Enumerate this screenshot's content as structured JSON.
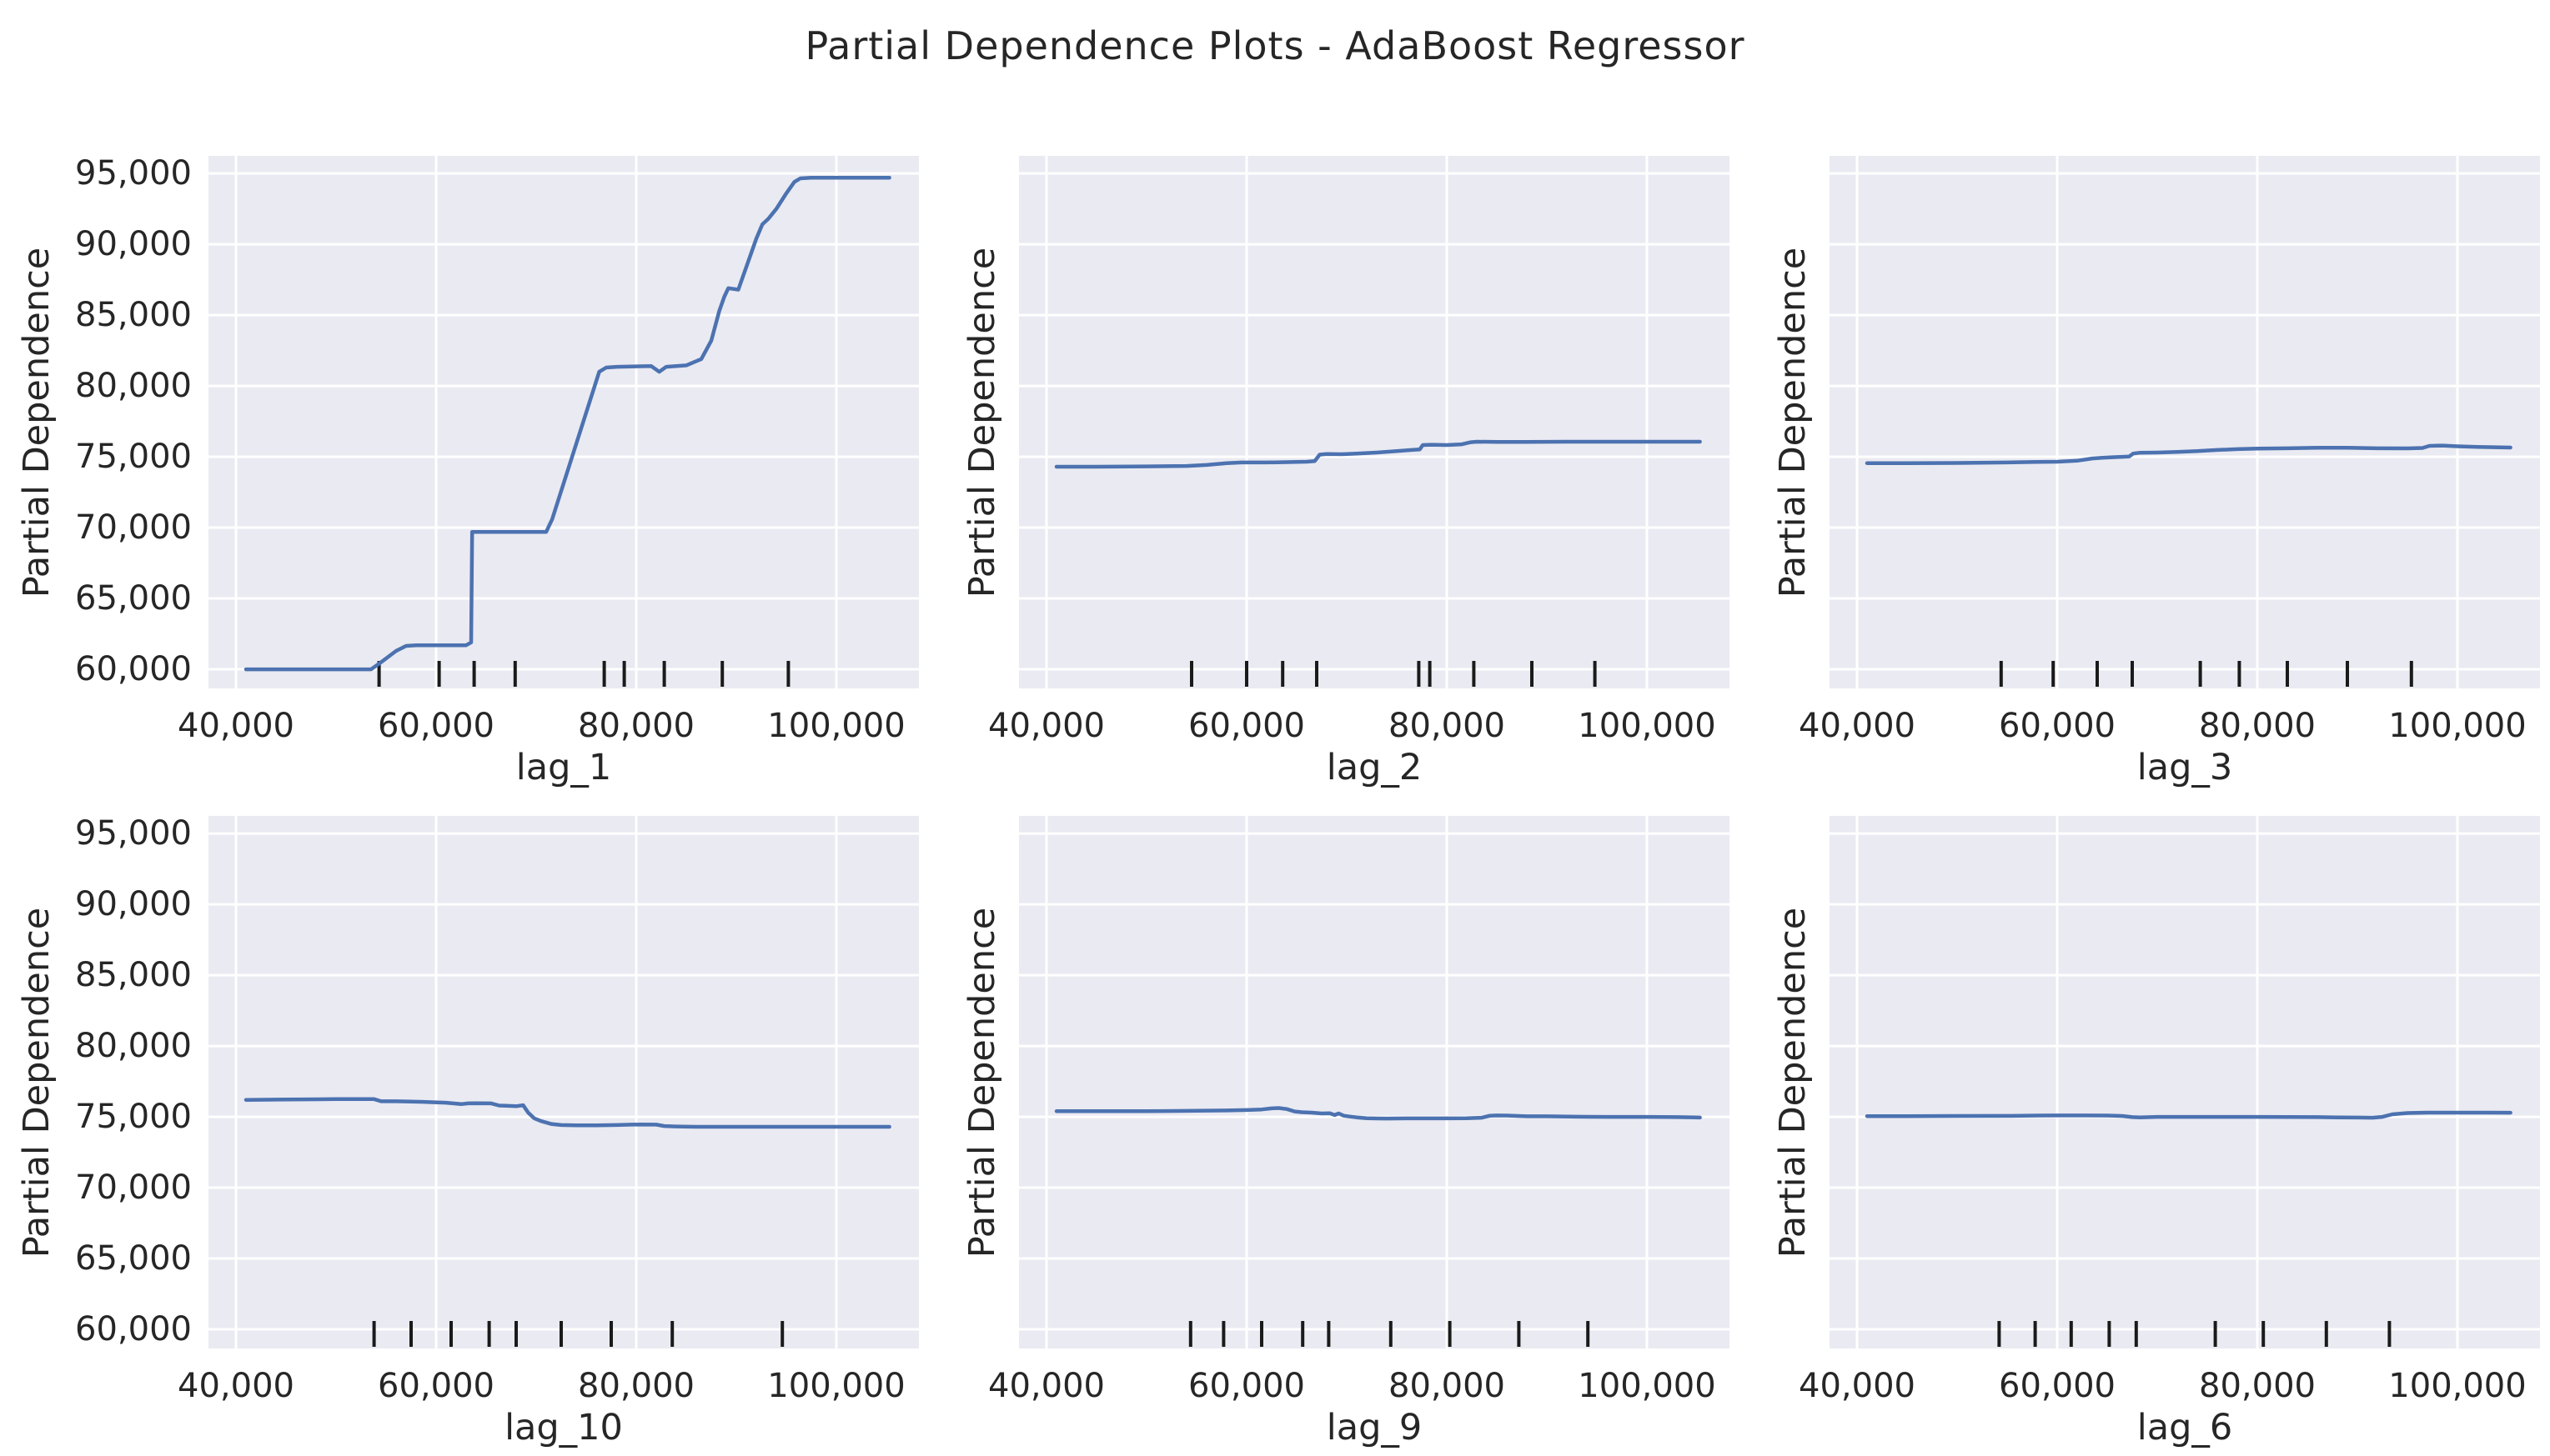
{
  "title": "Partial Dependence Plots - AdaBoost Regressor",
  "colors": {
    "line": "#4c72b0",
    "plot_background": "#eaeaf2",
    "grid": "#ffffff",
    "text": "#262626",
    "rug": "#1a1a1a",
    "figure_background": "#ffffff"
  },
  "axes_shared": {
    "ylabel": "Partial Dependence",
    "xlim": [
      37250,
      108250
    ],
    "ylim": [
      58650,
      96240
    ],
    "xticks": [
      40000,
      60000,
      80000,
      100000
    ],
    "xtick_labels": [
      "40,000",
      "60,000",
      "80,000",
      "100,000"
    ],
    "yticks": [
      60000,
      65000,
      70000,
      75000,
      80000,
      85000,
      90000,
      95000
    ],
    "ytick_labels": [
      "60,000",
      "65,000",
      "70,000",
      "75,000",
      "80,000",
      "85,000",
      "90,000",
      "95,000"
    ],
    "grid": true,
    "legend": "none"
  },
  "chart_data": [
    {
      "type": "line",
      "xlabel": "lag_1",
      "x": [
        41000,
        53500,
        54500,
        56000,
        57000,
        58000,
        63000,
        63500,
        63600,
        71000,
        71600,
        76300,
        77000,
        78100,
        81500,
        82300,
        83000,
        85000,
        86500,
        87500,
        88300,
        88800,
        89200,
        90200,
        90600,
        91200,
        92000,
        92600,
        93200,
        94000,
        95000,
        95800,
        96400,
        97500,
        105300
      ],
      "y": [
        60000,
        60000,
        60500,
        61300,
        61650,
        61700,
        61700,
        61900,
        69700,
        69700,
        70600,
        81000,
        81300,
        81350,
        81400,
        81000,
        81350,
        81450,
        81900,
        83200,
        85300,
        86300,
        86900,
        86800,
        87600,
        88800,
        90400,
        91400,
        91800,
        92500,
        93600,
        94400,
        94650,
        94700,
        94700
      ],
      "rug_x": [
        54300,
        60300,
        63800,
        67900,
        76800,
        78800,
        82800,
        88600,
        95200
      ]
    },
    {
      "type": "line",
      "xlabel": "lag_2",
      "x": [
        41000,
        45000,
        50000,
        54000,
        56000,
        58000,
        59500,
        62000,
        64000,
        66000,
        66800,
        67300,
        68000,
        69500,
        71000,
        73000,
        75000,
        76500,
        77300,
        77600,
        78500,
        80000,
        81500,
        82400,
        83000,
        85000,
        88000,
        92000,
        96000,
        100000,
        105300
      ],
      "y": [
        74300,
        74300,
        74320,
        74350,
        74420,
        74550,
        74600,
        74600,
        74620,
        74650,
        74700,
        75150,
        75200,
        75180,
        75230,
        75300,
        75400,
        75480,
        75520,
        75830,
        75850,
        75830,
        75880,
        76030,
        76060,
        76050,
        76050,
        76060,
        76060,
        76060,
        76060
      ],
      "rug_x": [
        54500,
        60000,
        63600,
        67000,
        77200,
        78300,
        82700,
        88500,
        94800
      ]
    },
    {
      "type": "line",
      "xlabel": "lag_3",
      "x": [
        41000,
        45000,
        50000,
        55000,
        58000,
        60000,
        62000,
        63500,
        64500,
        66000,
        67200,
        67600,
        68200,
        70000,
        72000,
        74000,
        76000,
        78000,
        80000,
        83000,
        86000,
        89000,
        92000,
        95000,
        96500,
        97200,
        98500,
        100000,
        102000,
        105300
      ],
      "y": [
        74550,
        74550,
        74560,
        74600,
        74640,
        74650,
        74720,
        74880,
        74930,
        74980,
        75020,
        75230,
        75280,
        75300,
        75340,
        75400,
        75480,
        75540,
        75580,
        75600,
        75640,
        75640,
        75600,
        75590,
        75620,
        75770,
        75790,
        75740,
        75690,
        75650
      ],
      "rug_x": [
        54400,
        59600,
        64000,
        67500,
        74300,
        78200,
        83000,
        89000,
        95400
      ]
    },
    {
      "type": "line",
      "xlabel": "lag_10",
      "x": [
        41000,
        45000,
        50000,
        53800,
        54500,
        56000,
        57500,
        59000,
        61000,
        62500,
        63200,
        64000,
        65500,
        66300,
        67000,
        68000,
        68700,
        69200,
        69800,
        70500,
        71500,
        72500,
        74000,
        76000,
        78000,
        79500,
        80500,
        82000,
        82800,
        84000,
        86000,
        90000,
        95000,
        100000,
        105300
      ],
      "y": [
        76200,
        76230,
        76250,
        76250,
        76100,
        76100,
        76080,
        76050,
        76000,
        75900,
        75950,
        75960,
        75950,
        75800,
        75780,
        75750,
        75820,
        75300,
        74900,
        74700,
        74500,
        74420,
        74400,
        74400,
        74420,
        74450,
        74460,
        74450,
        74350,
        74320,
        74300,
        74300,
        74300,
        74300,
        74300
      ],
      "rug_x": [
        53800,
        57500,
        61500,
        65300,
        68000,
        72500,
        77500,
        83600,
        94600
      ]
    },
    {
      "type": "line",
      "xlabel": "lag_9",
      "x": [
        41000,
        45000,
        50000,
        54000,
        56000,
        58000,
        60000,
        61500,
        62500,
        63200,
        64000,
        64800,
        65500,
        66500,
        67500,
        68300,
        68800,
        69200,
        69700,
        70300,
        71000,
        72000,
        74000,
        76000,
        78000,
        80000,
        82000,
        83500,
        84300,
        85000,
        86000,
        88000,
        90000,
        93000,
        96000,
        100000,
        103000,
        105300
      ],
      "y": [
        75400,
        75400,
        75400,
        75420,
        75440,
        75450,
        75480,
        75520,
        75600,
        75620,
        75550,
        75380,
        75330,
        75300,
        75240,
        75250,
        75130,
        75240,
        75080,
        75020,
        74960,
        74900,
        74880,
        74890,
        74890,
        74890,
        74900,
        74940,
        75080,
        75100,
        75090,
        75040,
        75040,
        75010,
        75000,
        75000,
        74980,
        74950
      ],
      "rug_x": [
        54400,
        57700,
        61500,
        65600,
        68200,
        74400,
        80300,
        87200,
        94100
      ]
    },
    {
      "type": "line",
      "xlabel": "lag_6",
      "x": [
        41000,
        45000,
        50000,
        55000,
        58000,
        60000,
        63000,
        65000,
        66500,
        67500,
        68300,
        70000,
        72000,
        75000,
        78000,
        80000,
        83000,
        86000,
        88000,
        90000,
        91500,
        92500,
        93500,
        95000,
        97000,
        100000,
        103000,
        105300
      ],
      "y": [
        75050,
        75050,
        75060,
        75070,
        75090,
        75100,
        75100,
        75090,
        75060,
        74980,
        74960,
        75000,
        75000,
        75000,
        75000,
        75000,
        74990,
        74980,
        74960,
        74950,
        74940,
        75000,
        75180,
        75270,
        75300,
        75300,
        75300,
        75290
      ],
      "rug_x": [
        54200,
        57800,
        61400,
        65200,
        67900,
        75800,
        80600,
        86900,
        93200
      ]
    }
  ]
}
